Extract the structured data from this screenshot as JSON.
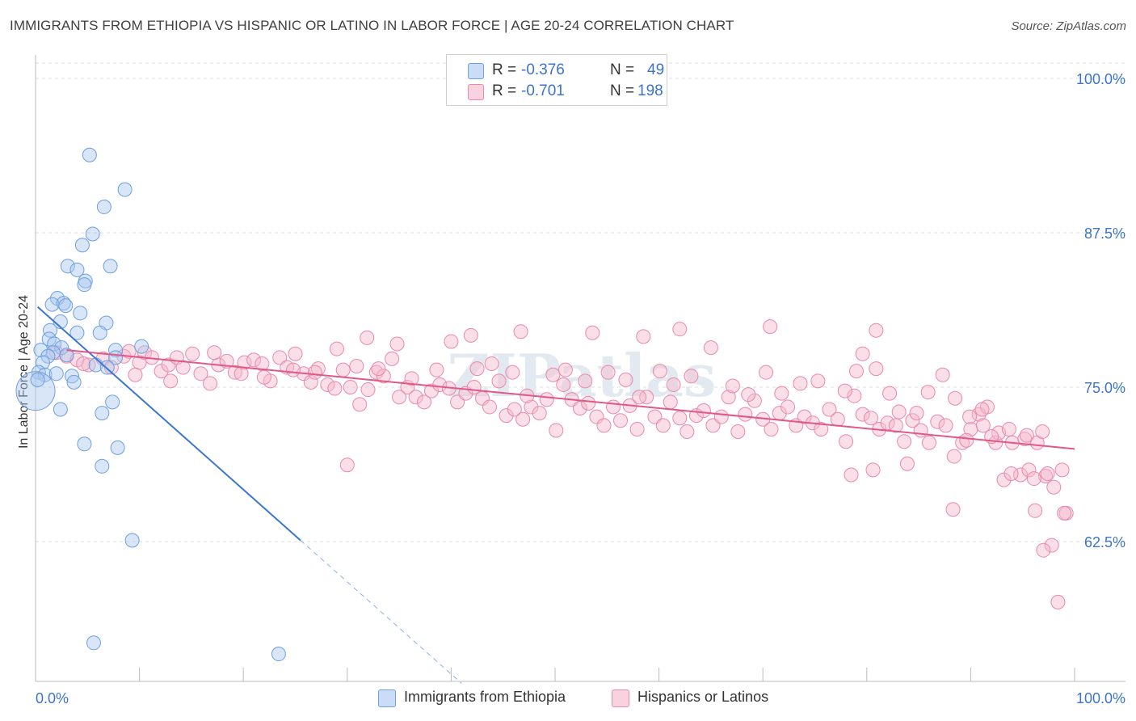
{
  "title": "IMMIGRANTS FROM ETHIOPIA VS HISPANIC OR LATINO IN LABOR FORCE | AGE 20-24 CORRELATION CHART",
  "source": "Source: ZipAtlas.com",
  "legend_top": {
    "rows": [
      {
        "r_label": "R =",
        "r_value": "-0.376",
        "n_label": "N =",
        "n_value": "49",
        "color": "#a9c8f0"
      },
      {
        "r_label": "R =",
        "r_value": "-0.701",
        "n_label": "N =",
        "n_value": "198",
        "color": "#f5b7cb"
      }
    ]
  },
  "chart_data": {
    "type": "scatter",
    "title": "IMMIGRANTS FROM ETHIOPIA VS HISPANIC OR LATINO IN LABOR FORCE | AGE 20-24 CORRELATION CHART",
    "xlabel": "",
    "ylabel": "In Labor Force | Age 20-24",
    "xlim": [
      0,
      100
    ],
    "ylim": [
      50,
      102
    ],
    "x_tick_labels": {
      "left": "0.0%",
      "right": "100.0%"
    },
    "y_ticks": [
      {
        "value": 100,
        "label": "100.0%"
      },
      {
        "value": 87.5,
        "label": "87.5%"
      },
      {
        "value": 75,
        "label": "75.0%"
      },
      {
        "value": 62.5,
        "label": "62.5%"
      }
    ],
    "grid": true,
    "legend_position": "bottom",
    "series": [
      {
        "name": "Immigrants from Ethiopia",
        "color": "#a9c8f0",
        "stroke": "#6e9fdf",
        "trend": {
          "x0": 0.2,
          "y0": 81.5,
          "x1": 25.5,
          "y1": 62.6,
          "dashed_to_x": 41,
          "color": "#3a76d0"
        },
        "points": [
          [
            5.2,
            93.8
          ],
          [
            8.6,
            91.0
          ],
          [
            6.6,
            89.6
          ],
          [
            5.5,
            87.4
          ],
          [
            4.5,
            86.5
          ],
          [
            3.1,
            84.8
          ],
          [
            4.0,
            84.5
          ],
          [
            7.2,
            84.8
          ],
          [
            4.8,
            83.6
          ],
          [
            4.7,
            83.3
          ],
          [
            2.1,
            82.2
          ],
          [
            1.6,
            81.7
          ],
          [
            2.7,
            81.8
          ],
          [
            2.9,
            81.6
          ],
          [
            4.3,
            81.0
          ],
          [
            2.4,
            80.3
          ],
          [
            6.8,
            80.2
          ],
          [
            1.4,
            79.6
          ],
          [
            4.0,
            79.4
          ],
          [
            6.2,
            79.4
          ],
          [
            1.3,
            78.9
          ],
          [
            1.8,
            78.5
          ],
          [
            2.5,
            78.2
          ],
          [
            10.2,
            78.3
          ],
          [
            0.5,
            78.0
          ],
          [
            1.7,
            77.8
          ],
          [
            7.7,
            78.0
          ],
          [
            3.0,
            77.6
          ],
          [
            1.2,
            77.5
          ],
          [
            7.7,
            77.4
          ],
          [
            0.7,
            77.0
          ],
          [
            5.8,
            76.8
          ],
          [
            6.9,
            76.6
          ],
          [
            0.3,
            76.2
          ],
          [
            0.9,
            76.0
          ],
          [
            2.0,
            76.1
          ],
          [
            3.5,
            75.9
          ],
          [
            3.7,
            75.4
          ],
          [
            0.0,
            74.7
          ],
          [
            7.4,
            73.8
          ],
          [
            2.4,
            73.2
          ],
          [
            6.4,
            72.9
          ],
          [
            4.7,
            70.4
          ],
          [
            7.9,
            70.1
          ],
          [
            6.4,
            68.6
          ],
          [
            9.3,
            62.6
          ],
          [
            5.6,
            54.3
          ],
          [
            23.4,
            53.4
          ],
          [
            0.2,
            75.6
          ]
        ]
      },
      {
        "name": "Hispanics or Latinos",
        "color": "#f5b7cb",
        "stroke": "#e88aa8",
        "trend": {
          "x0": 3.0,
          "y0": 78.0,
          "x1": 100.0,
          "y1": 70.0,
          "color": "#e0588a"
        },
        "points": [
          [
            2.0,
            77.8
          ],
          [
            3.0,
            77.5
          ],
          [
            4.0,
            77.2
          ],
          [
            5.1,
            76.8
          ],
          [
            6.5,
            77.3
          ],
          [
            7.3,
            76.6
          ],
          [
            8.5,
            77.5
          ],
          [
            9.0,
            77.9
          ],
          [
            10.0,
            77.0
          ],
          [
            10.5,
            77.8
          ],
          [
            11.2,
            77.4
          ],
          [
            12.1,
            76.3
          ],
          [
            12.8,
            76.8
          ],
          [
            13.6,
            77.4
          ],
          [
            14.2,
            76.6
          ],
          [
            15.1,
            77.7
          ],
          [
            15.9,
            76.1
          ],
          [
            16.8,
            75.3
          ],
          [
            17.6,
            76.8
          ],
          [
            18.4,
            77.1
          ],
          [
            19.2,
            76.2
          ],
          [
            20.1,
            77.0
          ],
          [
            21.0,
            77.2
          ],
          [
            21.8,
            76.9
          ],
          [
            22.6,
            75.5
          ],
          [
            23.5,
            77.4
          ],
          [
            24.2,
            76.6
          ],
          [
            25.0,
            77.7
          ],
          [
            25.8,
            76.1
          ],
          [
            26.5,
            75.4
          ],
          [
            27.2,
            76.5
          ],
          [
            28.1,
            75.2
          ],
          [
            28.8,
            74.9
          ],
          [
            29.6,
            76.4
          ],
          [
            30.3,
            75.0
          ],
          [
            31.2,
            73.6
          ],
          [
            32.0,
            74.8
          ],
          [
            32.8,
            76.2
          ],
          [
            33.5,
            75.9
          ],
          [
            34.3,
            77.3
          ],
          [
            35.0,
            74.2
          ],
          [
            35.8,
            75.0
          ],
          [
            36.6,
            74.2
          ],
          [
            37.4,
            73.8
          ],
          [
            38.1,
            74.7
          ],
          [
            38.9,
            75.2
          ],
          [
            39.8,
            74.9
          ],
          [
            40.6,
            73.8
          ],
          [
            41.4,
            74.5
          ],
          [
            42.2,
            75.0
          ],
          [
            43.0,
            74.1
          ],
          [
            43.7,
            73.4
          ],
          [
            44.6,
            75.5
          ],
          [
            45.3,
            72.7
          ],
          [
            46.1,
            73.2
          ],
          [
            46.9,
            72.4
          ],
          [
            47.7,
            73.4
          ],
          [
            48.5,
            72.9
          ],
          [
            49.2,
            74.0
          ],
          [
            50.1,
            71.5
          ],
          [
            50.8,
            75.2
          ],
          [
            51.6,
            74.0
          ],
          [
            52.4,
            73.3
          ],
          [
            53.2,
            73.7
          ],
          [
            54.0,
            72.6
          ],
          [
            54.7,
            71.9
          ],
          [
            55.6,
            73.4
          ],
          [
            56.3,
            72.3
          ],
          [
            57.2,
            73.5
          ],
          [
            57.9,
            71.6
          ],
          [
            58.8,
            74.2
          ],
          [
            59.6,
            72.6
          ],
          [
            60.4,
            71.9
          ],
          [
            61.1,
            73.8
          ],
          [
            62.0,
            72.5
          ],
          [
            62.7,
            71.4
          ],
          [
            63.6,
            72.7
          ],
          [
            64.3,
            73.1
          ],
          [
            65.2,
            71.9
          ],
          [
            66.0,
            72.6
          ],
          [
            66.7,
            74.2
          ],
          [
            67.6,
            71.4
          ],
          [
            68.3,
            72.8
          ],
          [
            69.2,
            73.9
          ],
          [
            70.0,
            72.4
          ],
          [
            70.8,
            71.6
          ],
          [
            71.6,
            72.9
          ],
          [
            72.4,
            73.4
          ],
          [
            73.2,
            71.9
          ],
          [
            74.0,
            72.6
          ],
          [
            74.8,
            72.1
          ],
          [
            75.6,
            71.6
          ],
          [
            76.4,
            73.2
          ],
          [
            77.2,
            72.4
          ],
          [
            78.0,
            70.6
          ],
          [
            78.8,
            74.3
          ],
          [
            79.6,
            72.8
          ],
          [
            80.4,
            72.5
          ],
          [
            81.2,
            71.6
          ],
          [
            82.0,
            72.1
          ],
          [
            82.8,
            71.9
          ],
          [
            83.6,
            70.6
          ],
          [
            84.4,
            72.3
          ],
          [
            85.2,
            71.5
          ],
          [
            86.0,
            70.5
          ],
          [
            86.8,
            72.2
          ],
          [
            87.6,
            71.9
          ],
          [
            88.4,
            69.4
          ],
          [
            89.2,
            70.5
          ],
          [
            90.0,
            71.6
          ],
          [
            90.8,
            72.8
          ],
          [
            91.6,
            73.4
          ],
          [
            92.4,
            70.5
          ],
          [
            93.2,
            67.5
          ],
          [
            94.0,
            70.5
          ],
          [
            94.8,
            67.9
          ],
          [
            95.6,
            68.3
          ],
          [
            96.4,
            70.5
          ],
          [
            97.2,
            67.8
          ],
          [
            98.0,
            66.9
          ],
          [
            98.8,
            68.3
          ],
          [
            99.2,
            64.8
          ],
          [
            4.6,
            76.9
          ],
          [
            9.6,
            76.0
          ],
          [
            13.0,
            75.5
          ],
          [
            17.2,
            77.8
          ],
          [
            19.8,
            76.1
          ],
          [
            22.0,
            75.8
          ],
          [
            24.8,
            76.4
          ],
          [
            26.9,
            76.2
          ],
          [
            29.0,
            78.1
          ],
          [
            30.9,
            76.7
          ],
          [
            33.0,
            76.5
          ],
          [
            34.8,
            78.5
          ],
          [
            36.2,
            75.7
          ],
          [
            38.6,
            76.4
          ],
          [
            40.0,
            78.7
          ],
          [
            42.5,
            76.5
          ],
          [
            43.9,
            76.9
          ],
          [
            45.9,
            76.2
          ],
          [
            47.3,
            74.3
          ],
          [
            49.8,
            76.0
          ],
          [
            51.0,
            76.4
          ],
          [
            52.9,
            75.5
          ],
          [
            55.1,
            76.2
          ],
          [
            56.8,
            75.6
          ],
          [
            58.1,
            74.2
          ],
          [
            60.1,
            76.3
          ],
          [
            61.4,
            75.2
          ],
          [
            63.1,
            75.9
          ],
          [
            65.0,
            78.2
          ],
          [
            67.1,
            75.1
          ],
          [
            68.6,
            74.4
          ],
          [
            70.3,
            76.2
          ],
          [
            71.8,
            74.5
          ],
          [
            73.6,
            75.3
          ],
          [
            75.3,
            75.5
          ],
          [
            77.9,
            74.7
          ],
          [
            79.0,
            76.3
          ],
          [
            80.9,
            76.5
          ],
          [
            82.2,
            74.5
          ],
          [
            83.1,
            73.0
          ],
          [
            84.8,
            72.9
          ],
          [
            85.9,
            74.6
          ],
          [
            87.3,
            76.0
          ],
          [
            88.5,
            74.1
          ],
          [
            89.9,
            72.6
          ],
          [
            91.1,
            73.2
          ],
          [
            92.7,
            71.3
          ],
          [
            93.7,
            71.6
          ],
          [
            95.2,
            70.8
          ],
          [
            96.9,
            71.4
          ],
          [
            97.4,
            68.0
          ],
          [
            31.9,
            79.0
          ],
          [
            41.9,
            79.2
          ],
          [
            46.7,
            79.5
          ],
          [
            53.6,
            79.4
          ],
          [
            58.5,
            79.1
          ],
          [
            62.0,
            79.7
          ],
          [
            70.7,
            79.9
          ],
          [
            79.6,
            77.7
          ],
          [
            80.9,
            79.6
          ],
          [
            96.1,
            67.6
          ],
          [
            99.0,
            64.8
          ],
          [
            97.8,
            62.2
          ],
          [
            97.0,
            61.8
          ],
          [
            98.4,
            57.6
          ],
          [
            88.3,
            65.1
          ],
          [
            83.9,
            68.8
          ],
          [
            80.6,
            68.3
          ],
          [
            93.9,
            68.0
          ],
          [
            95.4,
            71.1
          ],
          [
            96.2,
            65.0
          ],
          [
            30.0,
            68.7
          ],
          [
            78.5,
            67.9
          ],
          [
            89.6,
            70.7
          ],
          [
            91.2,
            71.9
          ],
          [
            92.0,
            71.0
          ]
        ]
      }
    ]
  },
  "bottom_legend": [
    {
      "label": "Immigrants from Ethiopia",
      "color": "#a9c8f0"
    },
    {
      "label": "Hispanics or Latinos",
      "color": "#f5b7cb"
    }
  ],
  "watermark": "ZIPatlas"
}
